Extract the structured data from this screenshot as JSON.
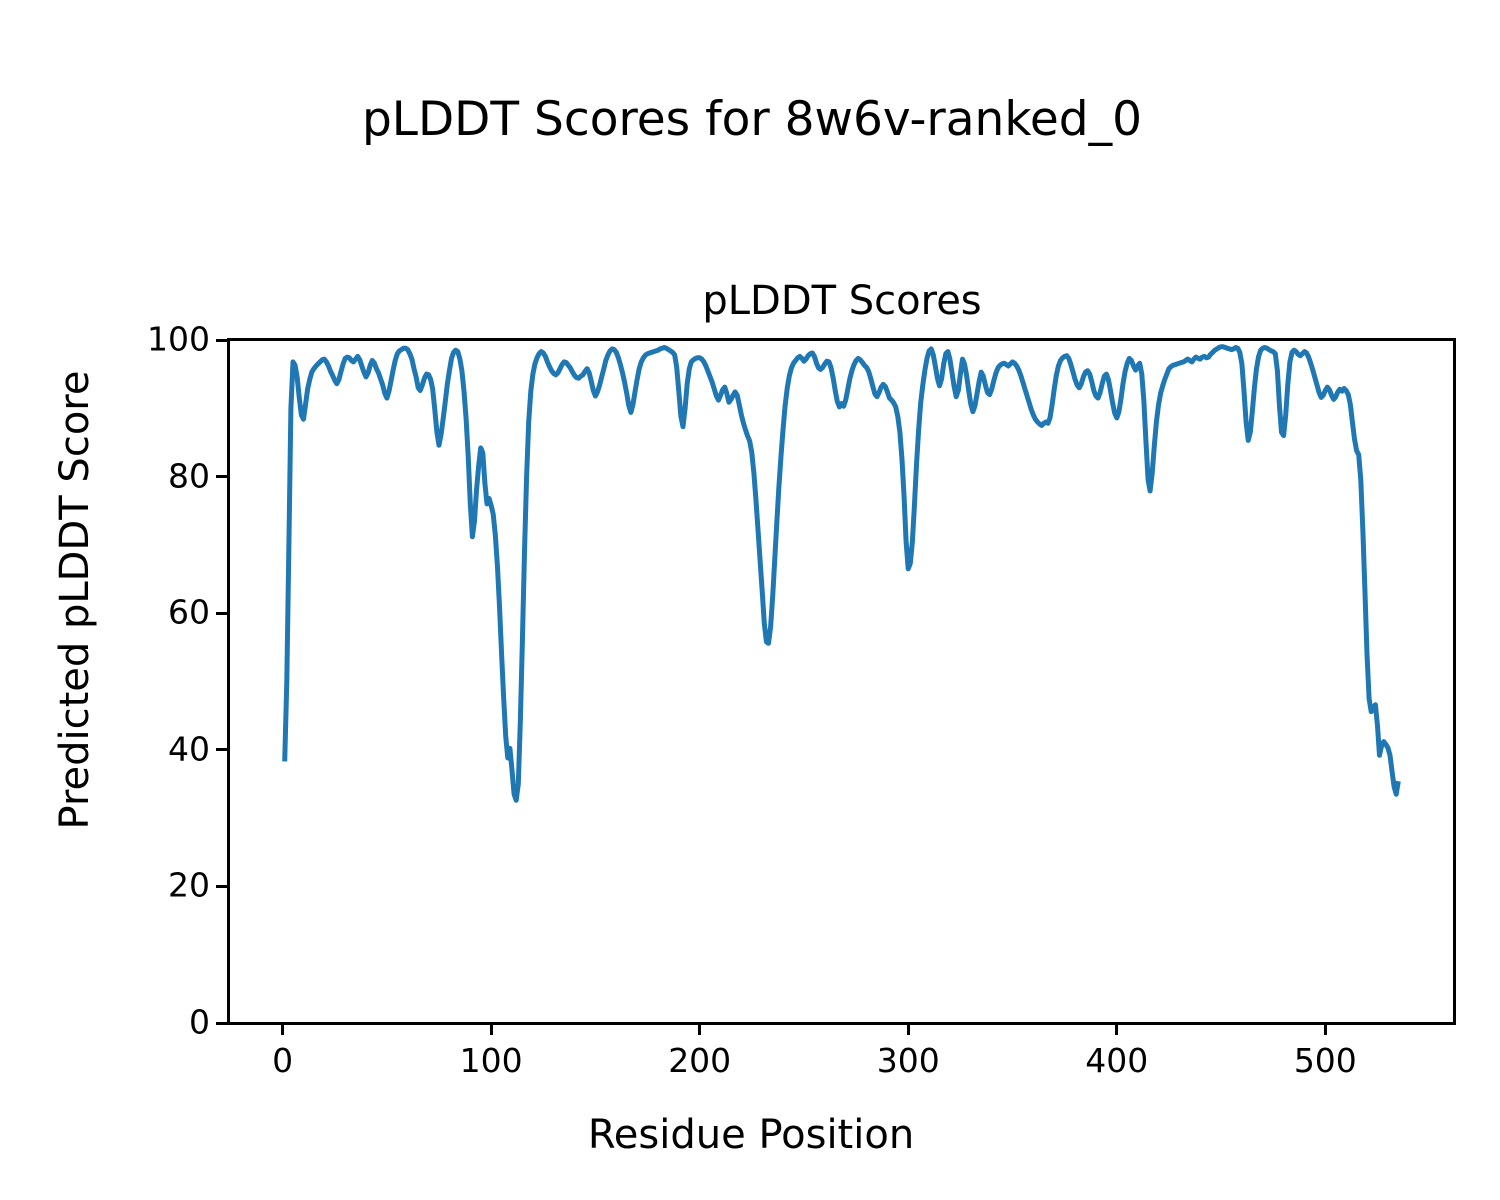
{
  "page": {
    "background": "#ffffff"
  },
  "chart_data": {
    "type": "line",
    "suptitle": "pLDDT Scores for 8w6v-ranked_0",
    "title": "pLDDT Scores",
    "xlabel": "Residue Position",
    "ylabel": "Predicted pLDDT Score",
    "xlim": [
      -25.7,
      561.7
    ],
    "ylim": [
      0,
      100
    ],
    "xticks": [
      0,
      100,
      200,
      300,
      400,
      500
    ],
    "yticks": [
      0,
      20,
      40,
      60,
      80,
      100
    ],
    "grid": false,
    "legend": false,
    "line_color": "#1f77b4",
    "line_width": 5,
    "series": [
      {
        "name": "pLDDT",
        "x_start": 1,
        "x_step": 1,
        "y": [
          38.3,
          50,
          70,
          90,
          96.8,
          96.3,
          94.5,
          91.5,
          89,
          88.4,
          90.5,
          92.8,
          94.2,
          95.3,
          95.8,
          96.2,
          96.5,
          96.8,
          97.1,
          97.2,
          96.8,
          96.2,
          95.4,
          94.8,
          94.1,
          93.6,
          94.2,
          95.4,
          96.5,
          97.3,
          97.5,
          97.4,
          97,
          96.8,
          97.2,
          97.6,
          97.1,
          96.2,
          95.3,
          94.6,
          95.2,
          96.3,
          97,
          96.6,
          95.8,
          95.2,
          94.3,
          93.4,
          92.2,
          91.5,
          92.5,
          94,
          95.6,
          97,
          98,
          98.4,
          98.6,
          98.8,
          98.8,
          98.6,
          98,
          97.2,
          95.8,
          94.6,
          93,
          92.6,
          93.4,
          94.4,
          95,
          94.9,
          94.2,
          92.8,
          89.8,
          86.5,
          84.6,
          86.2,
          88.5,
          91,
          93.5,
          95.5,
          97.3,
          98.2,
          98.5,
          98.3,
          97.2,
          95.5,
          92.5,
          88.5,
          83,
          76,
          71.2,
          73.5,
          78,
          81.5,
          84.2,
          83.5,
          79,
          76,
          76.8,
          75.8,
          74.5,
          71.5,
          67,
          61,
          54,
          47.5,
          42,
          38.8,
          40.2,
          37,
          33.5,
          32.6,
          35,
          44,
          56,
          69,
          80,
          88,
          92.5,
          95,
          96.5,
          97.4,
          98,
          98.3,
          98.1,
          97.6,
          96.8,
          96.1,
          95.5,
          95.1,
          94.9,
          95.2,
          95.8,
          96.4,
          96.8,
          96.7,
          96.3,
          95.9,
          95.3,
          94.8,
          94.5,
          94.4,
          94.7,
          94.9,
          95.4,
          95.8,
          95.2,
          94,
          92.6,
          91.8,
          92.4,
          93.4,
          94.6,
          95.8,
          97,
          97.8,
          98.4,
          98.7,
          98.6,
          98.2,
          97.4,
          96.4,
          95.2,
          93.8,
          92.2,
          90.4,
          89.4,
          90.6,
          92.4,
          94.2,
          95.8,
          96.8,
          97.4,
          97.8,
          98,
          98.1,
          98.2,
          98.3,
          98.4,
          98.5,
          98.7,
          98.8,
          98.9,
          98.8,
          98.6,
          98.4,
          98.2,
          97.8,
          96,
          92.5,
          88.8,
          87.3,
          90,
          93.6,
          95.8,
          96.8,
          97.1,
          97.3,
          97.4,
          97.4,
          97.2,
          96.8,
          96.2,
          95.4,
          94.6,
          93.8,
          92.8,
          91.8,
          91.2,
          91.9,
          92.7,
          93.1,
          92.2,
          90.9,
          91.3,
          91.9,
          92.4,
          91.9,
          90.5,
          89,
          87.8,
          86.8,
          85.9,
          85.2,
          83.5,
          80.5,
          76.5,
          72,
          67.5,
          63,
          58.5,
          55.8,
          55.6,
          58,
          62.5,
          68,
          73.5,
          78.5,
          83,
          87,
          90.5,
          93,
          94.8,
          95.9,
          96.6,
          97,
          97.4,
          97.6,
          97.3,
          96.9,
          97.2,
          97.7,
          98,
          98.1,
          97.6,
          96.6,
          95.9,
          95.7,
          96,
          96.5,
          96.9,
          96.8,
          95.9,
          94.4,
          92.6,
          91,
          90.2,
          90.7,
          90.3,
          91.2,
          92.8,
          94.3,
          95.5,
          96.4,
          97,
          97.3,
          97.1,
          96.7,
          96.3,
          96,
          95.4,
          94.4,
          93.2,
          92.1,
          91.7,
          92.3,
          93.1,
          93.5,
          93.2,
          92.4,
          91.5,
          91.2,
          90.8,
          90.2,
          88.8,
          86.5,
          82.5,
          77,
          70.5,
          66.5,
          67.3,
          70.5,
          76,
          82,
          87,
          90.8,
          93.4,
          95.6,
          97.3,
          98.4,
          98.7,
          97.8,
          96.2,
          94.4,
          93.3,
          94.3,
          96.5,
          98,
          98.3,
          97.2,
          95.2,
          93.2,
          91.7,
          92.6,
          95,
          97.2,
          96.5,
          94.8,
          92.6,
          90.6,
          89.5,
          90.4,
          92.2,
          93.9,
          95.3,
          94.7,
          93.4,
          92.3,
          92,
          92.8,
          94,
          95.1,
          95.9,
          96.3,
          96.5,
          96.6,
          96.4,
          96.2,
          96.5,
          96.8,
          96.6,
          96.2,
          95.6,
          94.8,
          93.8,
          92.8,
          91.8,
          90.8,
          89.8,
          89,
          88.4,
          88,
          87.7,
          87.5,
          87.8,
          88,
          87.8,
          88.6,
          90.5,
          92.8,
          94.8,
          96.2,
          97,
          97.4,
          97.6,
          97.7,
          97.3,
          96.4,
          95.3,
          94.2,
          93.4,
          93,
          93.6,
          94.6,
          95.3,
          95.5,
          95,
          93.9,
          92.6,
          91.8,
          91.5,
          92.3,
          93.6,
          94.7,
          95,
          94.2,
          92.6,
          90.8,
          89.3,
          88.6,
          89.5,
          91.4,
          93.6,
          95.4,
          96.6,
          97.3,
          97,
          96.2,
          95.6,
          96.2,
          96.6,
          95,
          91,
          85,
          79.5,
          77.9,
          80.5,
          84.5,
          88,
          90.5,
          92.2,
          93.3,
          94.2,
          95,
          95.8,
          96.1,
          96.3,
          96.4,
          96.5,
          96.6,
          96.7,
          96.8,
          97,
          97.2,
          97,
          96.8,
          97.2,
          97.5,
          97.3,
          97.2,
          97.5,
          97.6,
          97.4,
          97.5,
          97.9,
          98.2,
          98.5,
          98.7,
          98.9,
          99,
          99,
          98.9,
          98.8,
          98.7,
          98.6,
          98.7,
          98.9,
          98.8,
          98.2,
          96.5,
          92.5,
          88,
          85.3,
          86.5,
          89.5,
          93,
          95.8,
          97.6,
          98.5,
          98.8,
          98.9,
          98.8,
          98.6,
          98.4,
          98.3,
          98,
          95.5,
          90.5,
          86.5,
          86,
          89,
          93.5,
          96.8,
          98.2,
          98.5,
          98.3,
          97.9,
          97.7,
          98,
          98.3,
          98.1,
          97.5,
          96.6,
          95.6,
          94.5,
          93.4,
          92.3,
          91.6,
          91.9,
          92.6,
          93.1,
          92.7,
          91.9,
          91.3,
          91.7,
          92.4,
          92.8,
          92.5,
          92.9,
          92.6,
          92,
          90.5,
          88,
          85.5,
          83.8,
          83.2,
          79.5,
          72,
          63,
          54,
          47.5,
          45.6,
          46.2,
          46.6,
          43.5,
          39.2,
          40.6,
          41.2,
          40.8,
          40.3,
          39.2,
          36.8,
          34.6,
          33.5,
          35.4
        ]
      }
    ]
  }
}
